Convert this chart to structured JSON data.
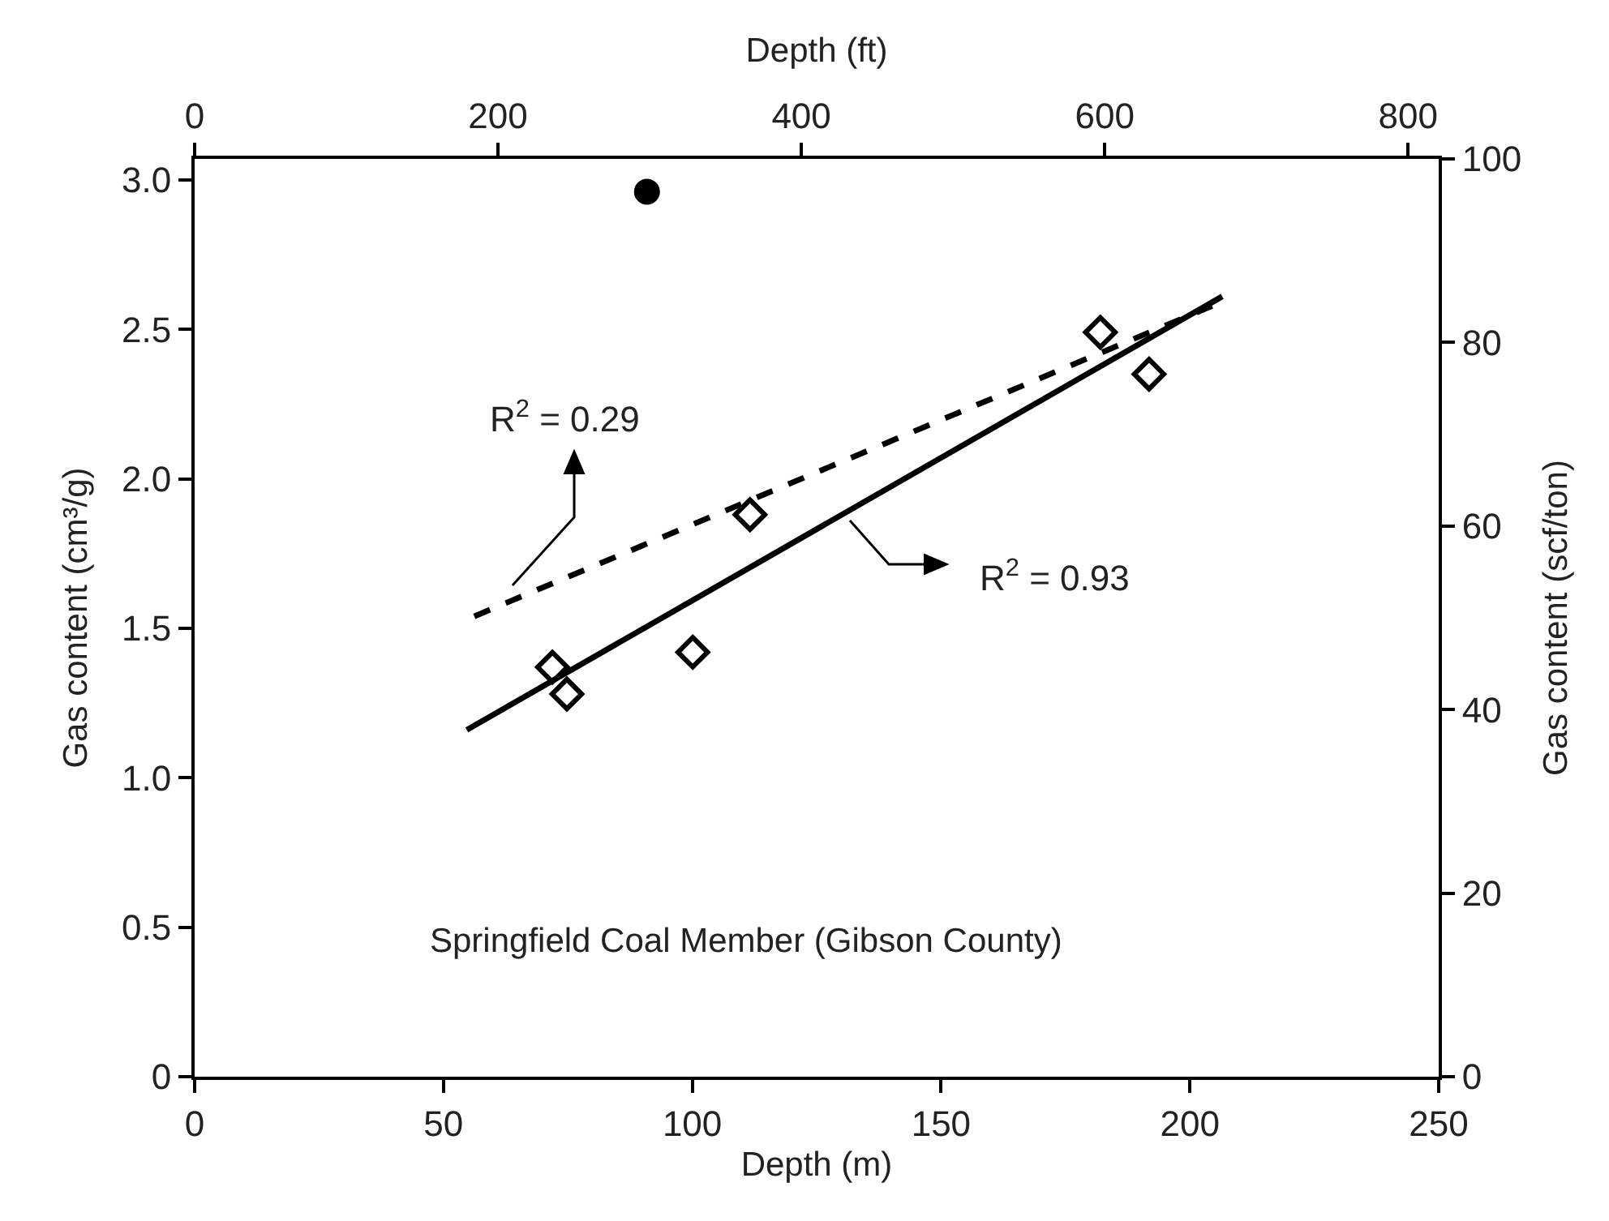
{
  "chart_data": {
    "type": "scatter",
    "xlabel": "Depth (m)",
    "x2label": "Depth (ft)",
    "ylabel": "Gas content (cm³/g)",
    "y2label": "Gas content (scf/ton)",
    "xlim": [
      0,
      250
    ],
    "xticks": [
      0,
      50,
      100,
      150,
      200,
      250
    ],
    "x2lim": [
      0,
      820.2
    ],
    "x2ticks": [
      0,
      200,
      400,
      600,
      800
    ],
    "ylim": [
      0,
      3.07
    ],
    "yticks": [
      0,
      0.5,
      {
        "value": 1,
        "label": "1.0"
      },
      1.5,
      {
        "value": 2,
        "label": "2.0"
      },
      2.5,
      {
        "value": 3,
        "label": "3.0"
      }
    ],
    "y2lim": [
      0,
      100
    ],
    "y2ticks": [
      0,
      20,
      40,
      60,
      80,
      100
    ],
    "series": [
      {
        "type": "scatter",
        "marker": "diamond",
        "color": "#000000",
        "x": [
          71.9,
          74.8,
          100.1,
          111.6,
          182.0,
          191.8
        ],
        "values": [
          1.37,
          1.28,
          1.42,
          1.88,
          2.49,
          2.35
        ]
      },
      {
        "type": "scatter",
        "marker": "circle",
        "color": "#000000",
        "x": [
          90.9
        ],
        "values": [
          2.96
        ]
      },
      {
        "type": "line",
        "line_style": "solid",
        "marker": "none",
        "color": "#000000",
        "x": [
          54.7,
          206.5
        ],
        "values": [
          1.16,
          2.61
        ]
      },
      {
        "type": "line",
        "line_style": "dashed",
        "marker": "none",
        "color": "#000000",
        "x": [
          56.2,
          207.6
        ],
        "values": [
          1.54,
          2.6
        ]
      }
    ],
    "annotations": [
      "R$^{2}$ = 0.29",
      "R$^{2}$ = 0.93",
      "Springfield Coal Member (Gibson County)"
    ]
  }
}
